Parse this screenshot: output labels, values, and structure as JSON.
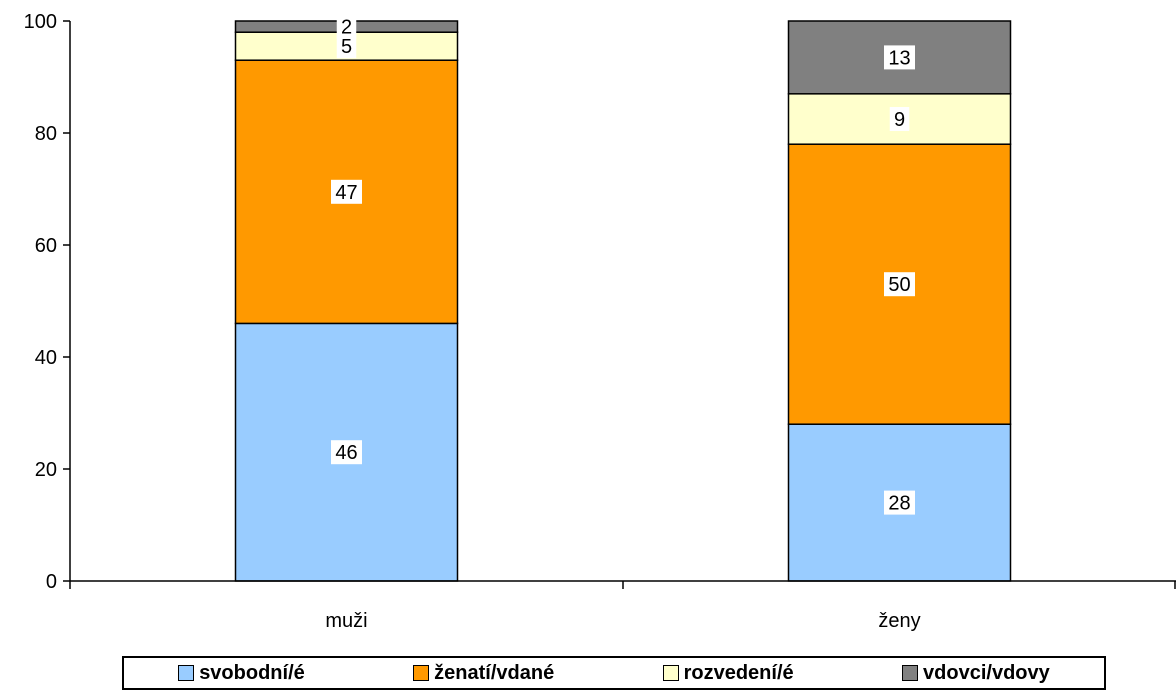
{
  "chart_data": {
    "type": "bar",
    "stacked": true,
    "categories": [
      "muži",
      "ženy"
    ],
    "series": [
      {
        "name": "svobodní/é",
        "values": [
          46,
          28
        ],
        "color": "#99CCFF"
      },
      {
        "name": "ženatí/vdané",
        "values": [
          47,
          50
        ],
        "color": "#FF9900"
      },
      {
        "name": "rozvedení/é",
        "values": [
          5,
          9
        ],
        "color": "#FFFFCC"
      },
      {
        "name": "vdovci/vdovy",
        "values": [
          2,
          13
        ],
        "color": "#808080"
      }
    ],
    "ylim": [
      0,
      100
    ],
    "yticks": [
      0,
      20,
      40,
      60,
      80,
      100
    ],
    "grid": false,
    "legend_position": "bottom"
  }
}
